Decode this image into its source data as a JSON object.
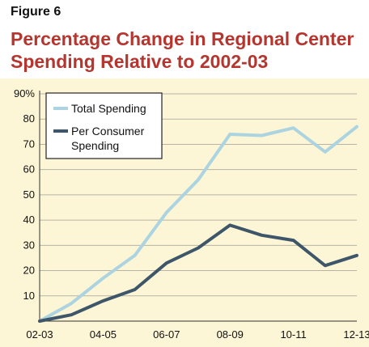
{
  "figure_label": "Figure 6",
  "chart_data": {
    "type": "line",
    "title": "Percentage Change in Regional Center Spending Relative to 2002-03",
    "xlabel": "",
    "ylabel": "",
    "x": [
      "02-03",
      "03-04",
      "04-05",
      "05-06",
      "06-07",
      "07-08",
      "08-09",
      "09-10",
      "10-11",
      "11-12",
      "12-13"
    ],
    "x_tick_labels": [
      "02-03",
      "04-05",
      "06-07",
      "08-09",
      "10-11",
      "12-13"
    ],
    "y_tick_labels": [
      "90%",
      "80",
      "70",
      "60",
      "50",
      "40",
      "30",
      "20",
      "10"
    ],
    "ylim": [
      0,
      90
    ],
    "grid": true,
    "legend_position": "top-left",
    "series": [
      {
        "name": "Total Spending",
        "color": "#acd4e0",
        "values": [
          0,
          7,
          17,
          26,
          43,
          56,
          74,
          73.5,
          76.5,
          67,
          77
        ]
      },
      {
        "name": "Per Consumer Spending",
        "color": "#3e566a",
        "legend_lines": [
          "Per Consumer",
          "Spending"
        ],
        "values": [
          0,
          2.5,
          8,
          12.5,
          23,
          29,
          38,
          34,
          32,
          22,
          26
        ]
      }
    ]
  }
}
